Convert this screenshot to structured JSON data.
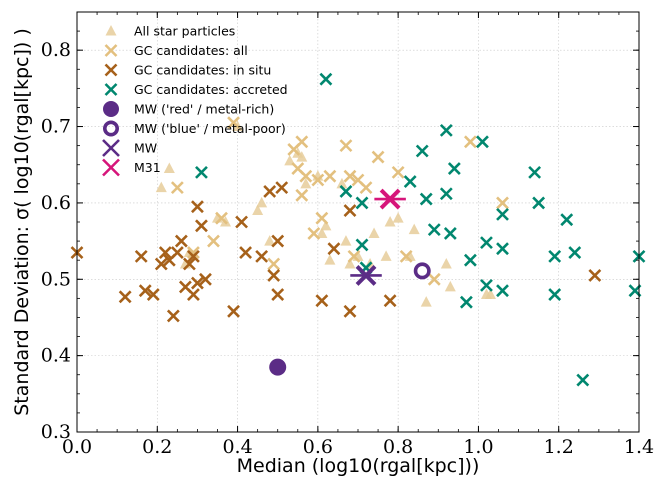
{
  "chart_data": {
    "type": "scatter",
    "xlabel": "Median (log10(rgal[kpc]))",
    "ylabel": "Standard Deviation: σ( log10(rgal[kpc]) )",
    "xlim": [
      0.0,
      1.4
    ],
    "ylim": [
      0.3,
      0.85
    ],
    "xticks": [
      "0.0",
      "0.2",
      "0.4",
      "0.6",
      "0.8",
      "1.0",
      "1.2",
      "1.4"
    ],
    "yticks": [
      "0.3",
      "0.4",
      "0.5",
      "0.6",
      "0.7",
      "0.8"
    ],
    "grid": true,
    "legend_position": "top-left",
    "series": [
      {
        "name": "All star particles",
        "marker": "triangle",
        "color": "#e6cc9a",
        "points": [
          [
            0.21,
            0.62
          ],
          [
            0.23,
            0.645
          ],
          [
            0.27,
            0.52
          ],
          [
            0.28,
            0.535
          ],
          [
            0.35,
            0.58
          ],
          [
            0.37,
            0.575
          ],
          [
            0.4,
            0.7
          ],
          [
            0.45,
            0.59
          ],
          [
            0.46,
            0.6
          ],
          [
            0.48,
            0.55
          ],
          [
            0.53,
            0.655
          ],
          [
            0.55,
            0.665
          ],
          [
            0.56,
            0.66
          ],
          [
            0.57,
            0.625
          ],
          [
            0.6,
            0.635
          ],
          [
            0.61,
            0.56
          ],
          [
            0.62,
            0.57
          ],
          [
            0.63,
            0.525
          ],
          [
            0.66,
            0.625
          ],
          [
            0.67,
            0.55
          ],
          [
            0.68,
            0.52
          ],
          [
            0.7,
            0.53
          ],
          [
            0.73,
            0.52
          ],
          [
            0.74,
            0.56
          ],
          [
            0.77,
            0.53
          ],
          [
            0.78,
            0.575
          ],
          [
            0.8,
            0.58
          ],
          [
            0.83,
            0.53
          ],
          [
            0.84,
            0.565
          ],
          [
            0.87,
            0.47
          ],
          [
            0.92,
            0.52
          ],
          [
            0.93,
            0.49
          ],
          [
            1.02,
            0.48
          ],
          [
            1.03,
            0.48
          ]
        ]
      },
      {
        "name": "GC candidates: all",
        "marker": "x",
        "color": "#e3c07f",
        "points": [
          [
            0.25,
            0.62
          ],
          [
            0.29,
            0.535
          ],
          [
            0.34,
            0.55
          ],
          [
            0.36,
            0.58
          ],
          [
            0.39,
            0.705
          ],
          [
            0.49,
            0.52
          ],
          [
            0.54,
            0.67
          ],
          [
            0.55,
            0.645
          ],
          [
            0.56,
            0.68
          ],
          [
            0.56,
            0.61
          ],
          [
            0.57,
            0.635
          ],
          [
            0.59,
            0.56
          ],
          [
            0.6,
            0.63
          ],
          [
            0.61,
            0.58
          ],
          [
            0.63,
            0.635
          ],
          [
            0.67,
            0.675
          ],
          [
            0.68,
            0.635
          ],
          [
            0.69,
            0.53
          ],
          [
            0.7,
            0.63
          ],
          [
            0.72,
            0.62
          ],
          [
            0.75,
            0.66
          ],
          [
            0.8,
            0.64
          ],
          [
            0.82,
            0.53
          ],
          [
            0.89,
            0.5
          ],
          [
            0.98,
            0.68
          ],
          [
            1.06,
            0.6
          ]
        ]
      },
      {
        "name": "GC candidates: in situ",
        "marker": "x",
        "color": "#a6611a",
        "points": [
          [
            0.0,
            0.535
          ],
          [
            0.12,
            0.477
          ],
          [
            0.16,
            0.53
          ],
          [
            0.17,
            0.485
          ],
          [
            0.19,
            0.48
          ],
          [
            0.21,
            0.52
          ],
          [
            0.22,
            0.535
          ],
          [
            0.23,
            0.525
          ],
          [
            0.24,
            0.452
          ],
          [
            0.25,
            0.535
          ],
          [
            0.26,
            0.55
          ],
          [
            0.27,
            0.49
          ],
          [
            0.28,
            0.52
          ],
          [
            0.29,
            0.53
          ],
          [
            0.29,
            0.48
          ],
          [
            0.3,
            0.595
          ],
          [
            0.3,
            0.495
          ],
          [
            0.31,
            0.57
          ],
          [
            0.32,
            0.5
          ],
          [
            0.39,
            0.458
          ],
          [
            0.41,
            0.575
          ],
          [
            0.42,
            0.535
          ],
          [
            0.46,
            0.53
          ],
          [
            0.48,
            0.615
          ],
          [
            0.49,
            0.505
          ],
          [
            0.5,
            0.48
          ],
          [
            0.5,
            0.55
          ],
          [
            0.51,
            0.62
          ],
          [
            0.61,
            0.472
          ],
          [
            0.64,
            0.54
          ],
          [
            0.68,
            0.458
          ],
          [
            0.68,
            0.59
          ],
          [
            0.78,
            0.472
          ],
          [
            1.29,
            0.505
          ]
        ]
      },
      {
        "name": "GC candidates: accreted",
        "marker": "x",
        "color": "#01876f",
        "points": [
          [
            0.31,
            0.64
          ],
          [
            0.62,
            0.762
          ],
          [
            0.67,
            0.615
          ],
          [
            0.71,
            0.545
          ],
          [
            0.72,
            0.515
          ],
          [
            0.71,
            0.6
          ],
          [
            0.83,
            0.628
          ],
          [
            0.86,
            0.668
          ],
          [
            0.87,
            0.605
          ],
          [
            0.89,
            0.565
          ],
          [
            0.92,
            0.695
          ],
          [
            0.92,
            0.612
          ],
          [
            0.93,
            0.56
          ],
          [
            0.94,
            0.645
          ],
          [
            0.97,
            0.47
          ],
          [
            0.98,
            0.525
          ],
          [
            1.01,
            0.68
          ],
          [
            1.02,
            0.548
          ],
          [
            1.02,
            0.492
          ],
          [
            1.06,
            0.585
          ],
          [
            1.06,
            0.54
          ],
          [
            1.06,
            0.485
          ],
          [
            1.14,
            0.64
          ],
          [
            1.15,
            0.6
          ],
          [
            1.19,
            0.48
          ],
          [
            1.19,
            0.53
          ],
          [
            1.22,
            0.578
          ],
          [
            1.24,
            0.535
          ],
          [
            1.26,
            0.368
          ],
          [
            1.39,
            0.485
          ],
          [
            1.4,
            0.53
          ]
        ]
      },
      {
        "name": "MW ('red' / metal-rich)",
        "marker": "filled-circle",
        "color": "#5b2c86",
        "points": [
          [
            0.5,
            0.385
          ]
        ]
      },
      {
        "name": "MW ('blue' / metal-poor)",
        "marker": "open-circle",
        "color": "#5b2c86",
        "points": [
          [
            0.86,
            0.511
          ]
        ]
      },
      {
        "name": "MW",
        "marker": "x-with-errorbar",
        "color": "#5b2c86",
        "points": [
          [
            0.72,
            0.505
          ]
        ]
      },
      {
        "name": "M31",
        "marker": "x-with-errorbar",
        "color": "#d6157a",
        "points": [
          [
            0.78,
            0.605
          ]
        ]
      }
    ]
  }
}
